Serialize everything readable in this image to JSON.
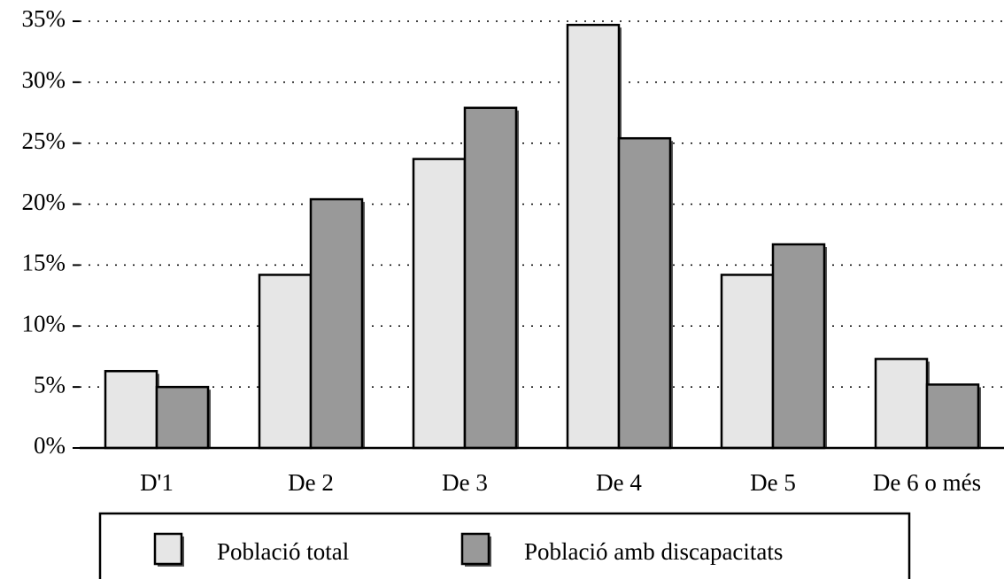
{
  "chart_data": {
    "type": "bar",
    "categories": [
      "D'1",
      "De 2",
      "De 3",
      "De 4",
      "De 5",
      "De 6 o més"
    ],
    "series": [
      {
        "name": "Població total",
        "color": "#e6e6e6",
        "values": [
          6.3,
          14.2,
          23.7,
          34.7,
          14.2,
          7.3
        ]
      },
      {
        "name": "Població amb discapacitats",
        "color": "#999999",
        "values": [
          5.0,
          20.4,
          27.9,
          25.4,
          16.7,
          5.2
        ]
      }
    ],
    "ylim": [
      0,
      35
    ],
    "yticks": [
      {
        "value": 0,
        "label": "0%"
      },
      {
        "value": 5,
        "label": "5%"
      },
      {
        "value": 10,
        "label": "10%"
      },
      {
        "value": 15,
        "label": "15%"
      },
      {
        "value": 20,
        "label": "20%"
      },
      {
        "value": 25,
        "label": "25%"
      },
      {
        "value": 30,
        "label": "30%"
      },
      {
        "value": 35,
        "label": "35%"
      }
    ],
    "grid": true,
    "legend": "bottom"
  }
}
